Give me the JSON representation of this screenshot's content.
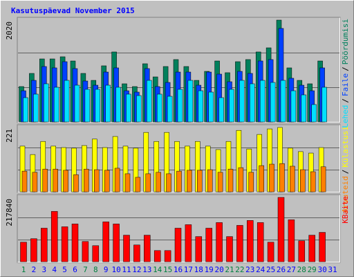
{
  "chart_data": [
    {
      "type": "bar",
      "title": "Kasutuspäevad November 2015",
      "ylim": [
        0,
        2020
      ],
      "yticks": [
        2020
      ],
      "legend_separator": "/",
      "series": [
        {
          "name": "Pöördumisi",
          "color": "#00805c",
          "values": [
            701,
            962,
            1250,
            1250,
            1292,
            1209,
            962,
            824,
            1113,
            1388,
            756,
            701,
            1154,
            893,
            1099,
            1237,
            1099,
            824,
            1003,
            1209,
            976,
            1195,
            1237,
            1388,
            1470,
            2020,
            1072,
            824,
            756,
            1209,
            null
          ]
        },
        {
          "name": "Faile",
          "color": "#0040ff",
          "values": [
            618,
            824,
            1099,
            1072,
            1195,
            1058,
            811,
            728,
            989,
            1072,
            618,
            591,
            1058,
            701,
            783,
            989,
            989,
            728,
            989,
            948,
            797,
            1003,
            962,
            1209,
            1237,
            1855,
            866,
            728,
            618,
            1072,
            null
          ]
        },
        {
          "name": "Lehed",
          "color": "#00e0ff",
          "values": [
            481,
            550,
            756,
            687,
            824,
            728,
            646,
            646,
            728,
            687,
            550,
            522,
            824,
            550,
            508,
            646,
            824,
            618,
            591,
            481,
            646,
            824,
            756,
            824,
            783,
            824,
            618,
            536,
            344,
            687,
            null
          ]
        }
      ]
    },
    {
      "type": "bar",
      "ylim": [
        0,
        221
      ],
      "yticks": [
        221
      ],
      "legend_separator": "/",
      "series": [
        {
          "name": "Külastusi",
          "color": "#ffff00",
          "values": [
            157,
            128,
            173,
            157,
            152,
            150,
            159,
            181,
            152,
            190,
            157,
            150,
            204,
            173,
            204,
            173,
            157,
            173,
            157,
            145,
            173,
            211,
            147,
            197,
            216,
            221,
            150,
            138,
            133,
            152,
            null
          ]
        },
        {
          "name": "Arvuteid",
          "color": "#ff8000",
          "values": [
            71,
            67,
            78,
            78,
            74,
            59,
            78,
            76,
            74,
            81,
            62,
            50,
            62,
            67,
            62,
            71,
            74,
            74,
            76,
            67,
            78,
            83,
            67,
            90,
            95,
            97,
            88,
            76,
            69,
            86,
            null
          ]
        }
      ]
    },
    {
      "type": "bar",
      "ylim": [
        0,
        217840
      ],
      "yticks": [
        217840
      ],
      "categories": [
        "1",
        "2",
        "3",
        "4",
        "5",
        "6",
        "7",
        "8",
        "9",
        "10",
        "11",
        "12",
        "13",
        "14",
        "15",
        "16",
        "17",
        "18",
        "19",
        "20",
        "21",
        "22",
        "23",
        "24",
        "25",
        "26",
        "27",
        "28",
        "29",
        "30",
        "31"
      ],
      "category_colors": [
        "#008040",
        "#0000ff",
        "#0000ff",
        "#0000ff",
        "#0000ff",
        "#0000ff",
        "#008040",
        "#008040",
        "#0000ff",
        "#0000ff",
        "#0000ff",
        "#0000ff",
        "#0000ff",
        "#008040",
        "#008040",
        "#0000ff",
        "#0000ff",
        "#0000ff",
        "#0000ff",
        "#0000ff",
        "#008040",
        "#008040",
        "#0000ff",
        "#0000ff",
        "#0000ff",
        "#0000ff",
        "#0000ff",
        "#008040",
        "#008040",
        "#0000ff",
        "#0000ff"
      ],
      "series": [
        {
          "name": "KBaite",
          "color": "#ff0000",
          "values": [
            66300,
            78140,
            113660,
            170490,
            118400,
            127870,
            68670,
            54460,
            134970,
            127870,
            89980,
            56830,
            89980,
            37890,
            37890,
            113660,
            125500,
            85250,
            113660,
            132600,
            85250,
            123130,
            139710,
            132600,
            66300,
            217840,
            142080,
            71040,
            89980,
            99450,
            null
          ]
        }
      ]
    }
  ]
}
